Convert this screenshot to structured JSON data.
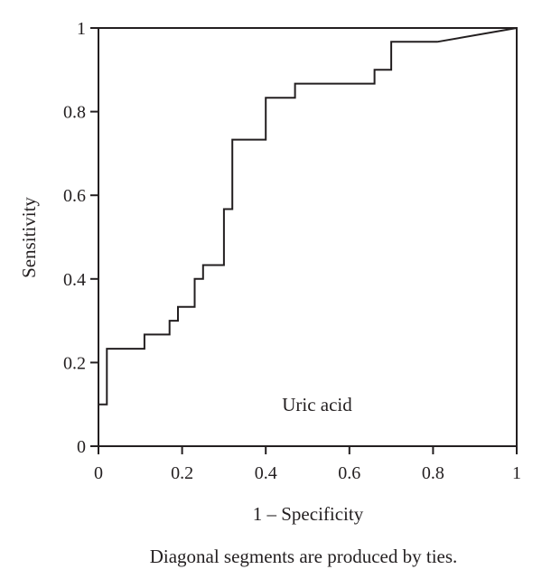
{
  "chart_data": {
    "type": "line",
    "xlabel": "1 – Specificity",
    "ylabel": "Sensitivity",
    "xlim": [
      0,
      1
    ],
    "ylim": [
      0,
      1
    ],
    "x_ticks": [
      "0",
      "0.2",
      "0.4",
      "0.6",
      "0.8",
      "1"
    ],
    "y_ticks": [
      "0",
      "0.2",
      "0.4",
      "0.6",
      "0.8",
      "1"
    ],
    "annotation": "Uric acid",
    "footnote": "Diagonal segments are produced by ties.",
    "grid": false,
    "series": [
      {
        "x": [
          0,
          0,
          0.02,
          0.02,
          0.11,
          0.11,
          0.17,
          0.17,
          0.19,
          0.19,
          0.23,
          0.23,
          0.25,
          0.25,
          0.3,
          0.3,
          0.32,
          0.32,
          0.4,
          0.4,
          0.47,
          0.47,
          0.66,
          0.66,
          0.7,
          0.7,
          0.81,
          1.0
        ],
        "y": [
          0,
          0.1,
          0.1,
          0.233,
          0.233,
          0.267,
          0.267,
          0.3,
          0.3,
          0.333,
          0.333,
          0.4,
          0.4,
          0.433,
          0.433,
          0.567,
          0.567,
          0.733,
          0.733,
          0.833,
          0.833,
          0.867,
          0.867,
          0.9,
          0.9,
          0.967,
          0.967,
          1.0
        ]
      }
    ]
  }
}
